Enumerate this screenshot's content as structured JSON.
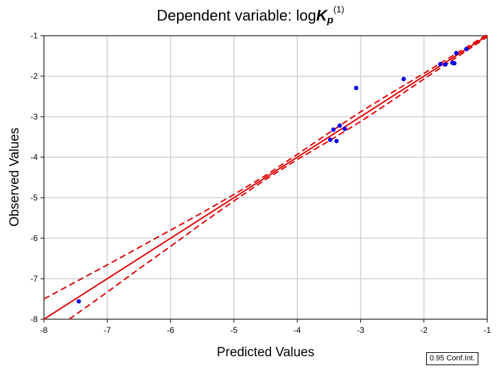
{
  "title": {
    "prefix": "Dependent variable: log",
    "symbol": "K",
    "subscript": "p",
    "superscript": "(1)"
  },
  "legend": {
    "label": "0.95 Conf.Int."
  },
  "colors": {
    "line": "#e00000",
    "points": "#0000ee",
    "grid": "#d0d0d0",
    "axis": "#000000"
  },
  "chart_data": {
    "type": "scatter",
    "xlabel": "Predicted Values",
    "ylabel": "Observed Values",
    "xlim": [
      -8,
      -1
    ],
    "ylim": [
      -8,
      -1
    ],
    "xticks": [
      -8,
      -7,
      -6,
      -5,
      -4,
      -3,
      -2,
      -1
    ],
    "yticks": [
      -8,
      -7,
      -6,
      -5,
      -4,
      -3,
      -2,
      -1
    ],
    "grid": true,
    "points": {
      "x": [
        -7.45,
        -3.48,
        -3.43,
        -3.38,
        -3.33,
        -3.25,
        -3.07,
        -2.32,
        -1.74,
        -1.66,
        -1.55,
        -1.52,
        -1.49,
        -1.33
      ],
      "y": [
        -7.56,
        -3.57,
        -3.32,
        -3.6,
        -3.22,
        -3.3,
        -2.29,
        -2.07,
        -1.7,
        -1.71,
        -1.67,
        -1.68,
        -1.43,
        -1.33
      ]
    },
    "fit_line": {
      "x": [
        -8,
        -1
      ],
      "y": [
        -8,
        -1
      ]
    },
    "conf_upper": {
      "x": [
        -8,
        -7.5,
        -7,
        -6.5,
        -6,
        -5.5,
        -5,
        -4.5,
        -4,
        -3.5,
        -3,
        -2.5,
        -2,
        -1.5,
        -1
      ],
      "y": [
        -7.5,
        -7.08,
        -6.66,
        -6.23,
        -5.8,
        -5.37,
        -4.92,
        -4.45,
        -3.93,
        -3.4,
        -2.88,
        -2.4,
        -1.93,
        -1.45,
        -0.97
      ]
    },
    "conf_lower": {
      "x": [
        -7.6,
        -7,
        -6.5,
        -6,
        -5.5,
        -5,
        -4.5,
        -4,
        -3.5,
        -3,
        -2.5,
        -2,
        -1.5,
        -1
      ],
      "y": [
        -8,
        -7.33,
        -6.76,
        -6.2,
        -5.63,
        -5.08,
        -4.55,
        -4.06,
        -3.6,
        -3.12,
        -2.6,
        -2.07,
        -1.55,
        -1.03
      ]
    }
  }
}
